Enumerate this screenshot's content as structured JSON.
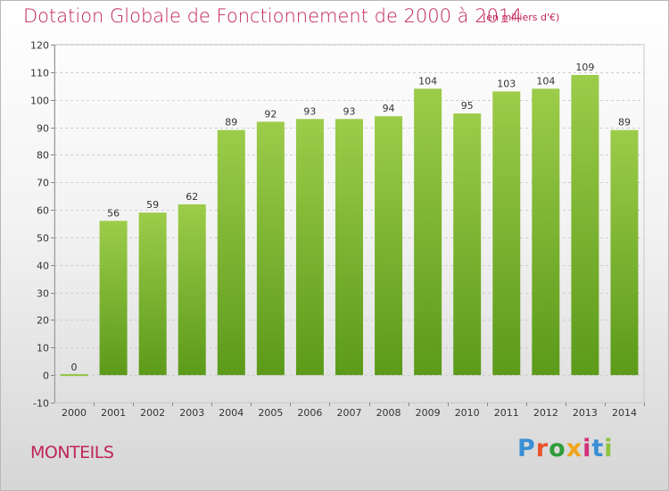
{
  "header": {
    "title": "Dotation Globale de Fonctionnement de 2000 à 2014",
    "subtitle": "(en milliers d'€)"
  },
  "footer": {
    "commune": "MONTEILS",
    "logo_text": "Proxiti",
    "logo_colors": [
      "#3a8fd4",
      "#e9542a",
      "#2e9d3a",
      "#f0a51a",
      "#d4317a",
      "#3a8fd4",
      "#8cc43c"
    ]
  },
  "colors": {
    "accent": "#c0245a",
    "bar": "#6fae2a",
    "bar_light": "#9ccc4a"
  },
  "chart_data": {
    "type": "bar",
    "title": "Dotation Globale de Fonctionnement de 2000 à 2014",
    "subtitle": "(en milliers d'€)",
    "xlabel": "",
    "ylabel": "",
    "categories": [
      "2000",
      "2001",
      "2002",
      "2003",
      "2004",
      "2005",
      "2006",
      "2007",
      "2008",
      "2009",
      "2010",
      "2011",
      "2012",
      "2013",
      "2014"
    ],
    "values": [
      0,
      56,
      59,
      62,
      89,
      92,
      93,
      93,
      94,
      104,
      95,
      103,
      104,
      109,
      89
    ],
    "ylim": [
      -10,
      120
    ],
    "yticks": [
      -10,
      0,
      10,
      20,
      30,
      40,
      50,
      60,
      70,
      80,
      90,
      100,
      110,
      120
    ],
    "grid": "horizontal dashed",
    "legend": "none"
  }
}
